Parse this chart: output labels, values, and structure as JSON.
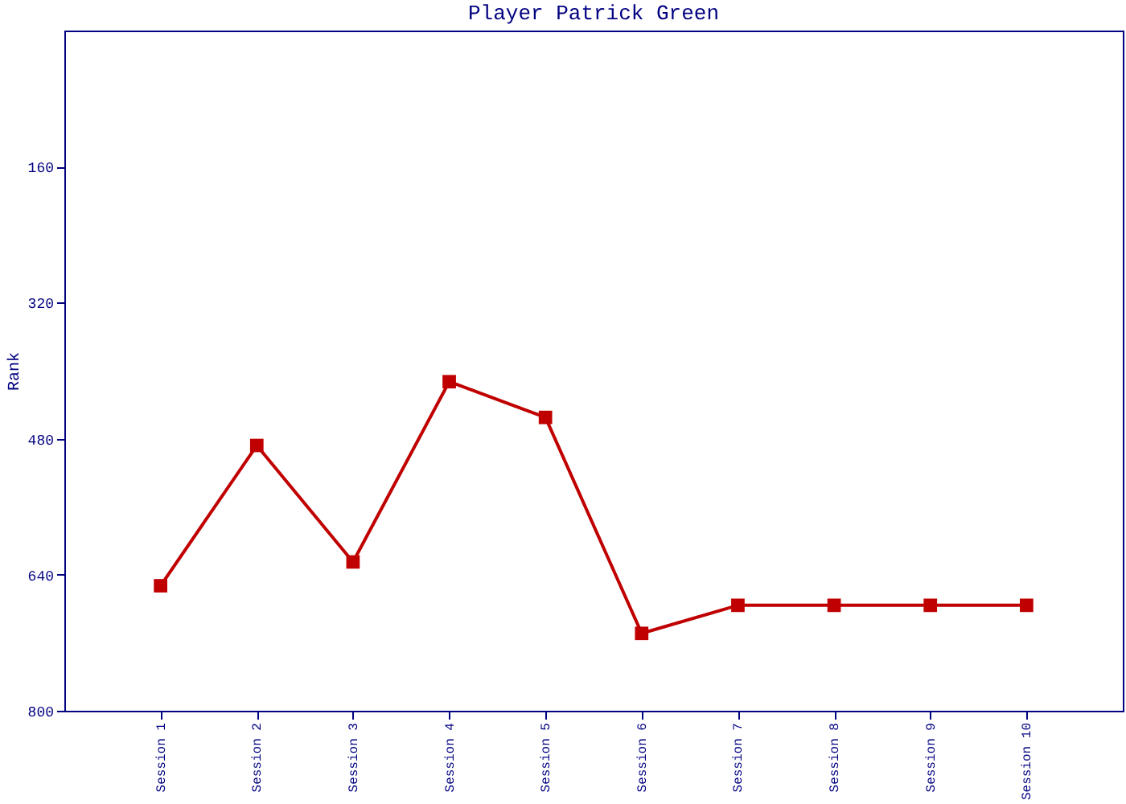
{
  "chart_data": {
    "type": "line",
    "title": "Player Patrick Green",
    "ylabel": "Rank",
    "categories": [
      "Session 1",
      "Session 2",
      "Session 3",
      "Session 4",
      "Session 5",
      "Session 6",
      "Session 7",
      "Session 8",
      "Session 9",
      "Session 10"
    ],
    "series": [
      {
        "color": "#c00000",
        "values": [
          653,
          488,
          625,
          413,
          455,
          709,
          676,
          676,
          676,
          676
        ]
      }
    ],
    "ylim": [
      800,
      0
    ],
    "yticks": [
      160,
      320,
      480,
      640,
      800
    ],
    "grid": false,
    "marker": "square",
    "line_style": "solid"
  }
}
